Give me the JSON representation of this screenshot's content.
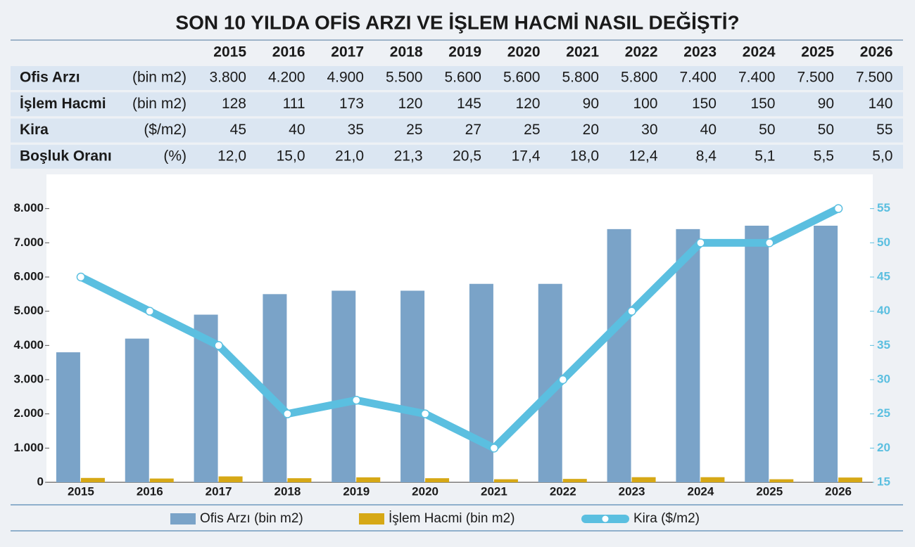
{
  "title": "SON 10 YILDA OFİS ARZI VE İŞLEM HACMİ NASIL DEĞİŞTİ?",
  "table": {
    "columns": [
      "2015",
      "2016",
      "2017",
      "2018",
      "2019",
      "2020",
      "2021",
      "2022",
      "2023",
      "2024",
      "2025",
      "2026"
    ],
    "rows": [
      {
        "label": "Ofis Arzı",
        "unit": "(bin m2)",
        "cells": [
          "3.800",
          "4.200",
          "4.900",
          "5.500",
          "5.600",
          "5.600",
          "5.800",
          "5.800",
          "7.400",
          "7.400",
          "7.500",
          "7.500"
        ]
      },
      {
        "label": "İşlem Hacmi",
        "unit": "(bin m2)",
        "cells": [
          "128",
          "111",
          "173",
          "120",
          "145",
          "120",
          "90",
          "100",
          "150",
          "150",
          "90",
          "140"
        ]
      },
      {
        "label": "Kira",
        "unit": "($/m2)",
        "cells": [
          "45",
          "40",
          "35",
          "25",
          "27",
          "25",
          "20",
          "30",
          "40",
          "50",
          "50",
          "55"
        ]
      },
      {
        "label": "Boşluk Oranı",
        "unit": "(%)",
        "cells": [
          "12,0",
          "15,0",
          "21,0",
          "21,3",
          "20,5",
          "17,4",
          "18,0",
          "12,4",
          "8,4",
          "5,1",
          "5,5",
          "5,0"
        ]
      }
    ]
  },
  "chart_data": {
    "type": "bar",
    "categories": [
      "2015",
      "2016",
      "2017",
      "2018",
      "2019",
      "2020",
      "2021",
      "2022",
      "2023",
      "2024",
      "2025",
      "2026"
    ],
    "series": [
      {
        "name": "Ofis Arzı (bin m2)",
        "color": "#7aa3c8",
        "values": [
          3800,
          4200,
          4900,
          5500,
          5600,
          5600,
          5800,
          5800,
          7400,
          7400,
          7500,
          7500
        ]
      },
      {
        "name": "İşlem Hacmi (bin m2)",
        "color": "#d6a816",
        "values": [
          128,
          111,
          173,
          120,
          145,
          120,
          90,
          100,
          150,
          150,
          90,
          140
        ]
      },
      {
        "name": "Kira ($/m2)",
        "color": "#5bbfe0",
        "type": "line",
        "axis": "y2",
        "values": [
          45,
          40,
          35,
          25,
          27,
          25,
          20,
          30,
          40,
          50,
          50,
          55
        ]
      }
    ],
    "ylim": [
      0,
      9000
    ],
    "yticks": [
      0,
      {
        "value": 1000,
        "label": "1.000"
      },
      {
        "value": 2000,
        "label": "2.000"
      },
      {
        "value": 3000,
        "label": "3.000"
      },
      {
        "value": 4000,
        "label": "4.000"
      },
      {
        "value": 5000,
        "label": "5.000"
      },
      {
        "value": 6000,
        "label": "6.000"
      },
      {
        "value": 7000,
        "label": "7.000"
      },
      {
        "value": 8000,
        "label": "8.000"
      }
    ],
    "y2lim": [
      15,
      60
    ],
    "y2ticks": [
      15,
      20,
      25,
      30,
      35,
      40,
      45,
      50,
      55
    ],
    "y2_color": "#5bbfe0",
    "grid": false,
    "legend": "bottom"
  }
}
